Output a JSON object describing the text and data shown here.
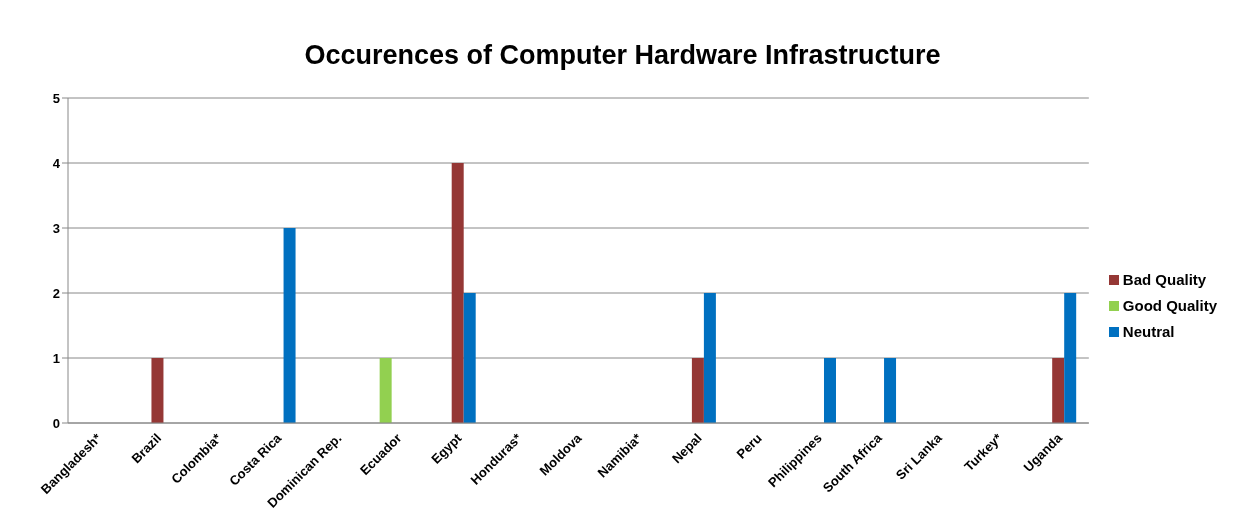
{
  "chart_data": {
    "type": "bar",
    "title": "Occurences of Computer Hardware Infrastructure",
    "categories": [
      "Bangladesh*",
      "Brazil",
      "Colombia*",
      "Costa Rica",
      "Dominican Rep.",
      "Ecuador",
      "Egypt",
      "Honduras*",
      "Moldova",
      "Namibia*",
      "Nepal",
      "Peru",
      "Philippines",
      "South Africa",
      "Sri Lanka",
      "Turkey*",
      "Uganda"
    ],
    "series": [
      {
        "name": "Good Quality",
        "color": "#92d050",
        "values": [
          0,
          0,
          0,
          0,
          0,
          1,
          0,
          0,
          0,
          0,
          0,
          0,
          0,
          0,
          0,
          0,
          0
        ]
      },
      {
        "name": "Bad Quality",
        "color": "#953735",
        "values": [
          0,
          1,
          0,
          0,
          0,
          0,
          4,
          0,
          0,
          0,
          1,
          0,
          0,
          0,
          0,
          0,
          1
        ]
      },
      {
        "name": "Neutral",
        "color": "#0070c0",
        "values": [
          0,
          0,
          0,
          3,
          0,
          0,
          2,
          0,
          0,
          0,
          2,
          0,
          1,
          1,
          0,
          0,
          2
        ]
      }
    ],
    "ylim": [
      0,
      5
    ],
    "yticks": [
      0,
      1,
      2,
      3,
      4,
      5
    ],
    "grid": "y",
    "legend": "right"
  }
}
